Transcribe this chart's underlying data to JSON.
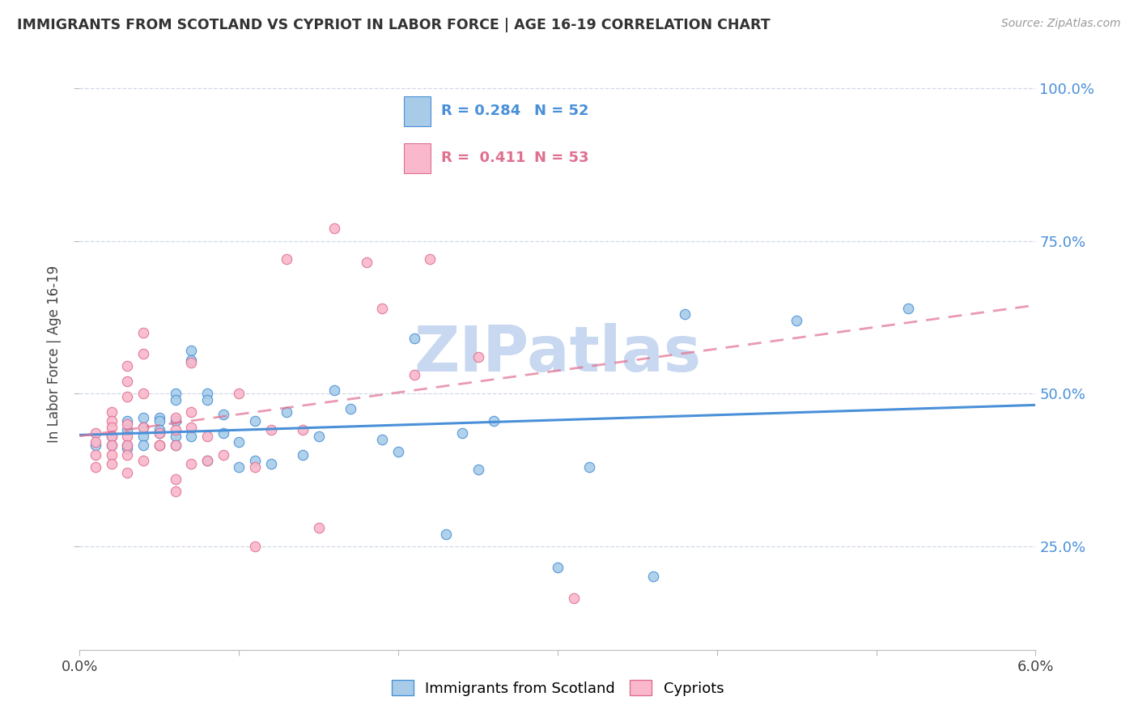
{
  "title": "IMMIGRANTS FROM SCOTLAND VS CYPRIOT IN LABOR FORCE | AGE 16-19 CORRELATION CHART",
  "source": "Source: ZipAtlas.com",
  "ylabel": "In Labor Force | Age 16-19",
  "xlim": [
    0.0,
    0.06
  ],
  "ylim": [
    0.08,
    1.05
  ],
  "yticks": [
    0.25,
    0.5,
    0.75,
    1.0
  ],
  "ytick_labels": [
    "25.0%",
    "50.0%",
    "75.0%",
    "100.0%"
  ],
  "scotland_color": "#a8cce8",
  "scotland_edge": "#4a90d9",
  "cypriot_color": "#f9b8cb",
  "cypriot_edge": "#e07090",
  "scotland_R": 0.284,
  "scotland_N": 52,
  "cypriot_R": 0.411,
  "cypriot_N": 53,
  "scotland_x": [
    0.001,
    0.002,
    0.002,
    0.003,
    0.003,
    0.003,
    0.003,
    0.004,
    0.004,
    0.004,
    0.004,
    0.005,
    0.005,
    0.005,
    0.005,
    0.005,
    0.006,
    0.006,
    0.006,
    0.006,
    0.006,
    0.007,
    0.007,
    0.007,
    0.008,
    0.008,
    0.008,
    0.009,
    0.009,
    0.01,
    0.01,
    0.011,
    0.011,
    0.012,
    0.013,
    0.014,
    0.015,
    0.016,
    0.017,
    0.019,
    0.02,
    0.021,
    0.023,
    0.024,
    0.025,
    0.026,
    0.03,
    0.032,
    0.036,
    0.038,
    0.045,
    0.052
  ],
  "scotland_y": [
    0.415,
    0.43,
    0.415,
    0.455,
    0.44,
    0.415,
    0.41,
    0.46,
    0.445,
    0.43,
    0.415,
    0.46,
    0.455,
    0.44,
    0.435,
    0.415,
    0.5,
    0.49,
    0.455,
    0.43,
    0.415,
    0.57,
    0.555,
    0.43,
    0.5,
    0.49,
    0.39,
    0.465,
    0.435,
    0.42,
    0.38,
    0.455,
    0.39,
    0.385,
    0.47,
    0.4,
    0.43,
    0.505,
    0.475,
    0.425,
    0.405,
    0.59,
    0.27,
    0.435,
    0.375,
    0.455,
    0.215,
    0.38,
    0.2,
    0.63,
    0.62,
    0.64
  ],
  "cypriot_x": [
    0.001,
    0.001,
    0.001,
    0.001,
    0.002,
    0.002,
    0.002,
    0.002,
    0.002,
    0.002,
    0.002,
    0.003,
    0.003,
    0.003,
    0.003,
    0.003,
    0.003,
    0.003,
    0.003,
    0.004,
    0.004,
    0.004,
    0.004,
    0.004,
    0.005,
    0.005,
    0.005,
    0.006,
    0.006,
    0.006,
    0.006,
    0.006,
    0.007,
    0.007,
    0.007,
    0.007,
    0.008,
    0.008,
    0.009,
    0.01,
    0.011,
    0.011,
    0.012,
    0.013,
    0.014,
    0.015,
    0.016,
    0.018,
    0.019,
    0.021,
    0.022,
    0.025,
    0.031
  ],
  "cypriot_y": [
    0.435,
    0.42,
    0.4,
    0.38,
    0.47,
    0.455,
    0.445,
    0.43,
    0.415,
    0.4,
    0.385,
    0.545,
    0.52,
    0.495,
    0.45,
    0.43,
    0.415,
    0.4,
    0.37,
    0.6,
    0.565,
    0.5,
    0.445,
    0.39,
    0.415,
    0.435,
    0.415,
    0.46,
    0.44,
    0.415,
    0.36,
    0.34,
    0.55,
    0.47,
    0.445,
    0.385,
    0.43,
    0.39,
    0.4,
    0.5,
    0.38,
    0.25,
    0.44,
    0.72,
    0.44,
    0.28,
    0.77,
    0.715,
    0.64,
    0.53,
    0.72,
    0.56,
    0.165
  ],
  "watermark": "ZIPatlas",
  "watermark_color": "#c8d8f0",
  "bg_color": "#ffffff",
  "grid_color": "#d0d8e8",
  "right_axis_label_color": "#4a90d9"
}
